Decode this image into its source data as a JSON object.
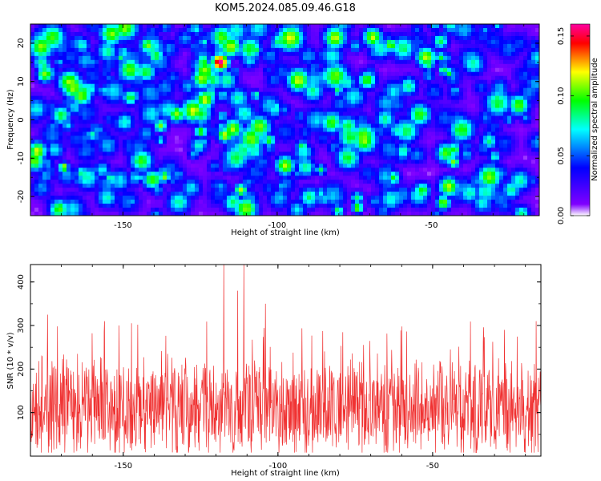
{
  "title": "KOM5.2024.085.09.46.G18",
  "chart_data": [
    {
      "type": "heatmap",
      "xlabel": "Height of straight line (km)",
      "ylabel": "Frequency (Hz)",
      "xlim": [
        -180,
        -15
      ],
      "ylim": [
        -25,
        25
      ],
      "xticks": [
        -150,
        -100,
        -50
      ],
      "xtick_labels": [
        "-150",
        "-100",
        "-50"
      ],
      "yticks": [
        -20,
        -10,
        0,
        10,
        20
      ],
      "ytick_labels": [
        "-20",
        "-10",
        "0",
        "10",
        "20"
      ],
      "colorbar": {
        "label": "Normalized spectral amplitude",
        "range": [
          0.0,
          0.16
        ],
        "ticks": [
          0.0,
          0.05,
          0.1,
          0.15
        ],
        "tick_labels": [
          "0.00",
          "0.05",
          "0.10",
          "0.15"
        ],
        "colormap": [
          "#ffffff",
          "#7f00ff",
          "#0000ff",
          "#00ffff",
          "#00ff00",
          "#ffff00",
          "#ff0000",
          "#ff00a0"
        ]
      },
      "notable_peaks": [
        {
          "x": -118.5,
          "y": 15,
          "value": 0.16
        },
        {
          "x": -53,
          "y": -18.5,
          "value": 0.09
        },
        {
          "x": -47,
          "y": 20.5,
          "value": 0.08
        }
      ]
    },
    {
      "type": "line",
      "xlabel": "Height of straight line (km)",
      "ylabel": "SNR (10 * v/v)",
      "xlim": [
        -180,
        -15
      ],
      "ylim": [
        0,
        440
      ],
      "xticks": [
        -150,
        -100,
        -50
      ],
      "xtick_labels": [
        "-150",
        "-100",
        "-50"
      ],
      "yticks": [
        100,
        200,
        300,
        400
      ],
      "ytick_labels": [
        "100",
        "200",
        "300",
        "400"
      ],
      "color": "#f03232",
      "baseline": 110,
      "notable_peaks": [
        {
          "x": -117.5,
          "y": 440
        },
        {
          "x": -111,
          "y": 440
        },
        {
          "x": -113,
          "y": 380
        },
        {
          "x": -104,
          "y": 350
        },
        {
          "x": -174.5,
          "y": 325
        },
        {
          "x": -156,
          "y": 310
        },
        {
          "x": -16.5,
          "y": 310
        }
      ]
    }
  ]
}
